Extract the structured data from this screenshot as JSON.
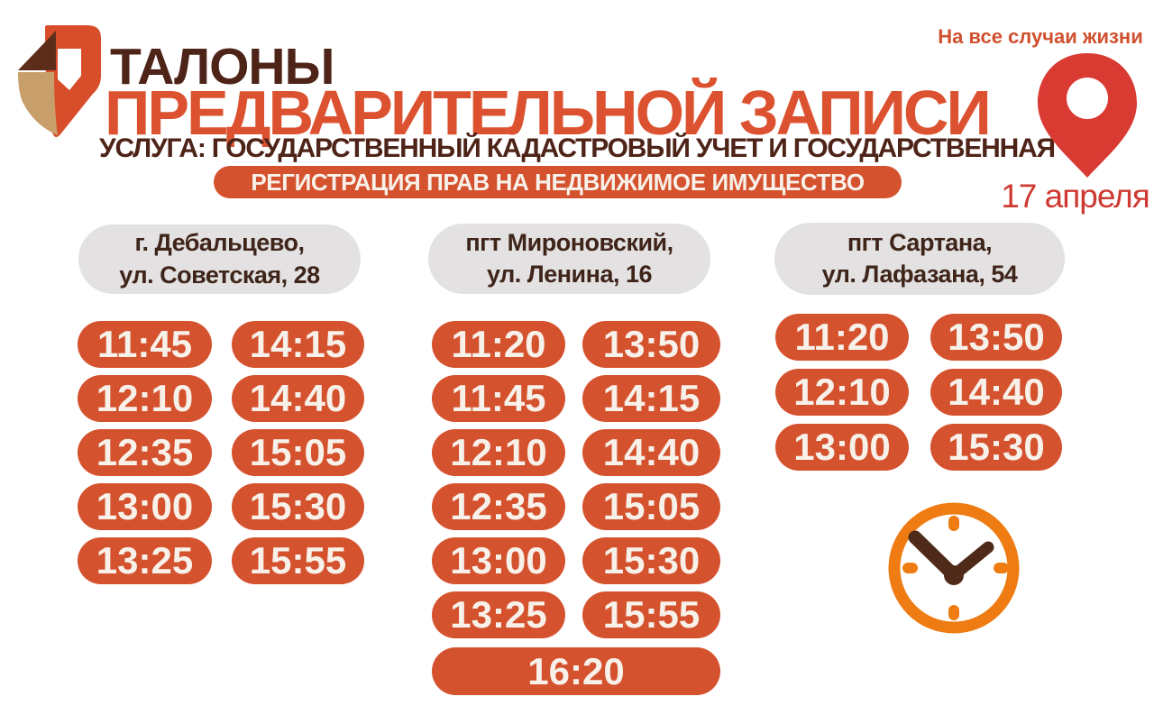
{
  "poster": {
    "title_line1": "ТАЛОНЫ",
    "title_line2": "ПРЕДВАРИТЕЛЬНОЙ ЗАПИСИ",
    "service_line": "УСЛУГА: ГОСУДАРСТВЕННЫЙ КАДАСТРОВЫЙ УЧЕТ И ГОСУДАРСТВЕННАЯ",
    "service_badge": "РЕГИСТРАЦИЯ ПРАВ НА НЕДВИЖИМОЕ ИМУЩЕСТВО",
    "tagline": "На все случаи жизни",
    "date": "17 апреля"
  },
  "columns": [
    {
      "location": "г. Дебальцево,",
      "address": "ул. Советская, 28",
      "times": [
        "11:45",
        "14:15",
        "12:10",
        "14:40",
        "12:35",
        "15:05",
        "13:00",
        "15:30",
        "13:25",
        "15:55"
      ]
    },
    {
      "location": "пгт Мироновский,",
      "address": "ул. Ленина, 16",
      "times": [
        "11:20",
        "13:50",
        "11:45",
        "14:15",
        "12:10",
        "14:40",
        "12:35",
        "15:05",
        "13:00",
        "15:30",
        "13:25",
        "15:55"
      ],
      "wide_time": "16:20"
    },
    {
      "location": "пгт Сартана,",
      "address": "ул. Лафазана, 54",
      "times": [
        "11:20",
        "13:50",
        "12:10",
        "14:40",
        "13:00",
        "15:30"
      ]
    }
  ],
  "icons": {
    "logo": "mfc-logo",
    "pin": "location-pin-icon",
    "clock": "clock-icon"
  },
  "colors": {
    "accent_vermillion": "#d5522e",
    "title_orange": "#dc5230",
    "dark_brown_text": "#4e2318",
    "header_pill_bg": "#e3e1e1",
    "pin_red": "#d93a32",
    "date_red": "#ce3a32",
    "tagline_orange": "#d0502e",
    "clock_orange": "#ee7c12",
    "clock_hands_brown": "#4f2a18",
    "logo_brown": "#5d2d1a",
    "logo_tan": "#c89f6b"
  }
}
